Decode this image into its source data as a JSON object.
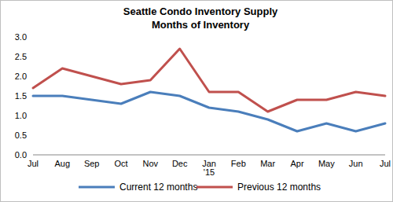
{
  "chart_data": {
    "type": "line",
    "title": "Seattle Condo Inventory Supply",
    "subtitle": "Months of Inventory",
    "categories": [
      "Jul",
      "Aug",
      "Sep",
      "Oct",
      "Nov",
      "Dec",
      "Jan '15",
      "Feb",
      "Mar",
      "Apr",
      "May",
      "Jun",
      "Jul"
    ],
    "series": [
      {
        "name": "Current 12 months",
        "color": "#4a7ebb",
        "values": [
          1.5,
          1.5,
          1.4,
          1.3,
          1.6,
          1.5,
          1.2,
          1.1,
          0.9,
          0.6,
          0.8,
          0.6,
          0.8
        ]
      },
      {
        "name": "Previous 12 months",
        "color": "#c0504d",
        "values": [
          1.7,
          2.2,
          2.0,
          1.8,
          1.9,
          2.7,
          1.6,
          1.6,
          1.1,
          1.4,
          1.4,
          1.6,
          1.5
        ]
      }
    ],
    "ylim": [
      0,
      3
    ],
    "yticks": [
      {
        "value": 0,
        "label": "0.0"
      },
      {
        "value": 0.5,
        "label": "0.5"
      },
      {
        "value": 1,
        "label": "1.0"
      },
      {
        "value": 1.5,
        "label": "1.5"
      },
      {
        "value": 2,
        "label": "2.0"
      },
      {
        "value": 2.5,
        "label": "2.5"
      },
      {
        "value": 3,
        "label": "3.0"
      }
    ],
    "grid": false,
    "legend": "bottom"
  }
}
